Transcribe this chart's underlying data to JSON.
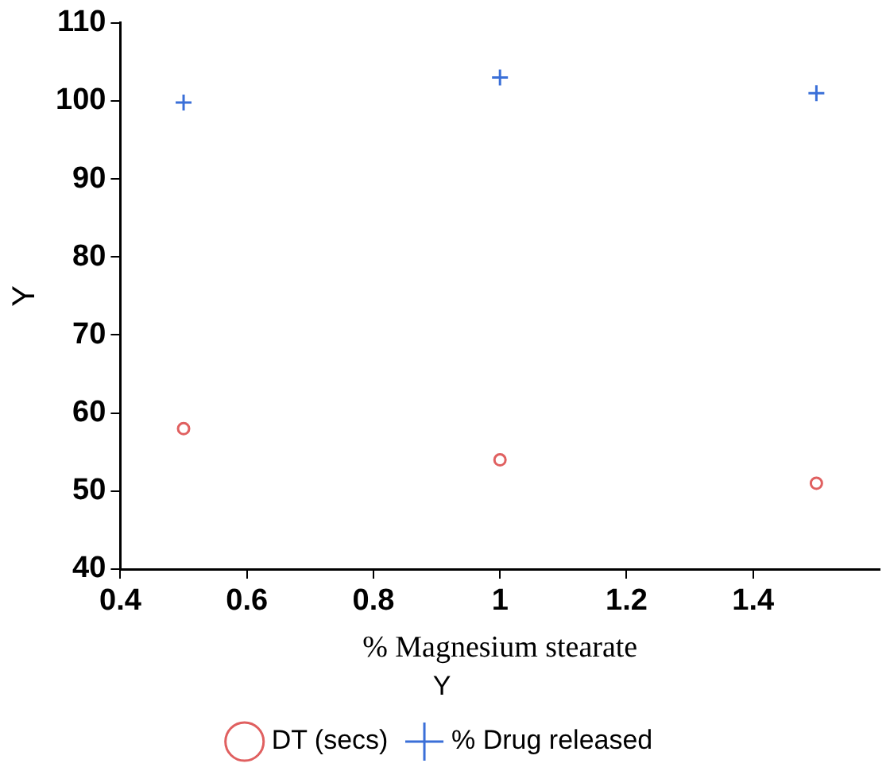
{
  "chart_data": {
    "type": "scatter",
    "xlabel": "% Magnesium stearate",
    "ylabel": "Y",
    "legend_title": "Y",
    "legend": "bottom",
    "grid": false,
    "xlim": [
      0.4,
      1.6
    ],
    "xticks": [
      0.4,
      0.6,
      0.8,
      {
        "value": 1,
        "label": "1"
      },
      1.2,
      1.4
    ],
    "ylim": [
      40,
      110
    ],
    "yticks": [
      40,
      50,
      60,
      70,
      80,
      90,
      100,
      110
    ],
    "x": [
      0.5,
      1,
      1.5
    ],
    "series": [
      {
        "name": "DT (secs)",
        "color": "#e06060",
        "marker": "circle",
        "values": [
          58,
          54,
          51
        ]
      },
      {
        "name": "% Drug released",
        "color": "#3a6fd8",
        "marker": "cross",
        "values": [
          99.8,
          103,
          101
        ]
      }
    ]
  }
}
